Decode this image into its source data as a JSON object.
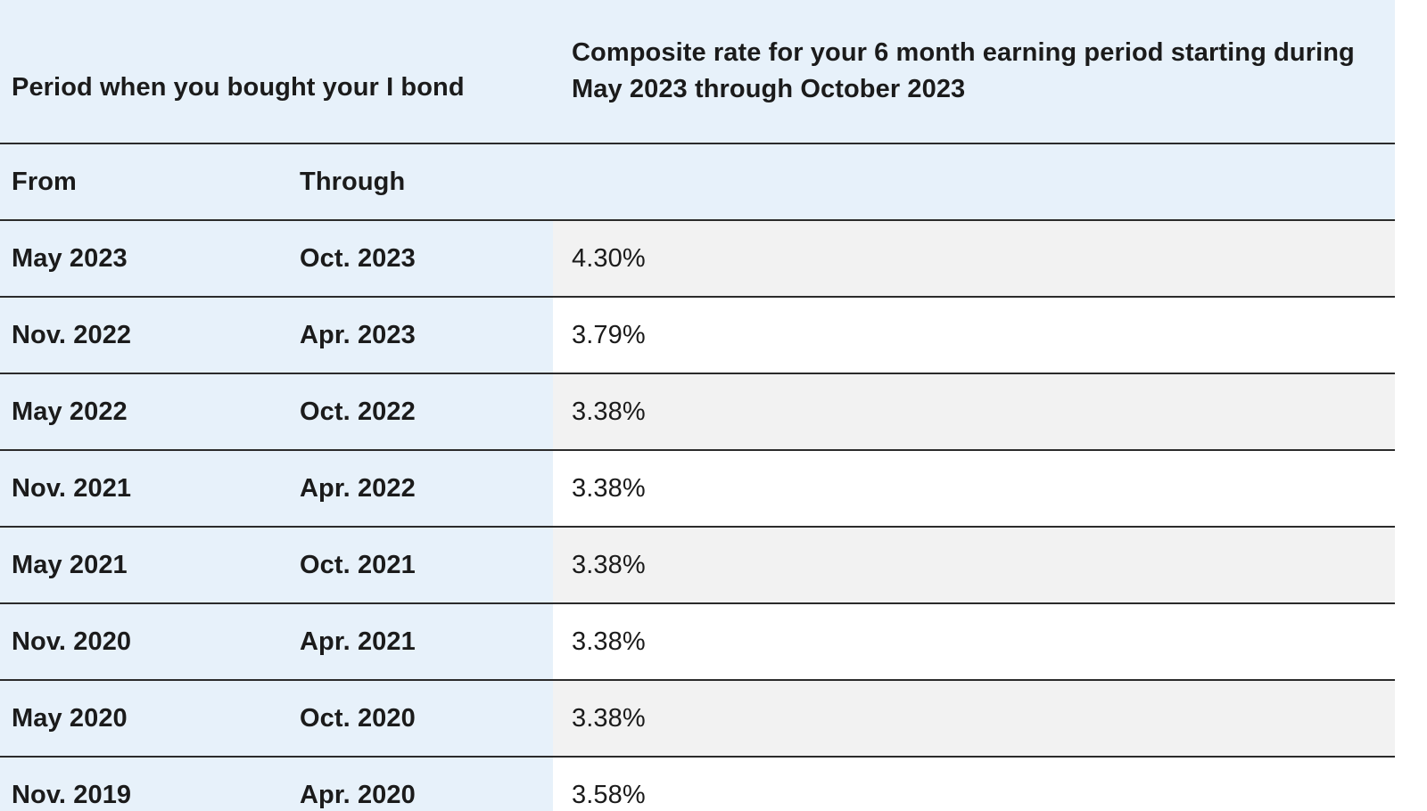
{
  "table": {
    "header": {
      "period_label": "Period when you bought your I bond",
      "rate_label": "Composite rate for your 6 month earning period starting during May 2023 through October 2023",
      "from_label": "From",
      "through_label": "Through",
      "rate_sub_label": ""
    },
    "rows": [
      {
        "from": "May 2023",
        "through": "Oct. 2023",
        "rate": "4.30%"
      },
      {
        "from": "Nov. 2022",
        "through": "Apr. 2023",
        "rate": "3.79%"
      },
      {
        "from": "May 2022",
        "through": "Oct. 2022",
        "rate": "3.38%"
      },
      {
        "from": "Nov. 2021",
        "through": "Apr. 2022",
        "rate": "3.38%"
      },
      {
        "from": "May 2021",
        "through": "Oct. 2021",
        "rate": "3.38%"
      },
      {
        "from": "Nov. 2020",
        "through": "Apr. 2021",
        "rate": "3.38%"
      },
      {
        "from": "May 2020",
        "through": "Oct. 2020",
        "rate": "3.38%"
      },
      {
        "from": "Nov. 2019",
        "through": "Apr. 2020",
        "rate": "3.58%"
      }
    ]
  },
  "colors": {
    "header_bg": "#e7f1fa",
    "shaded_row_bg": "#f2f2f2",
    "row_border": "#2b2b2b",
    "text": "#1b1b1b"
  }
}
